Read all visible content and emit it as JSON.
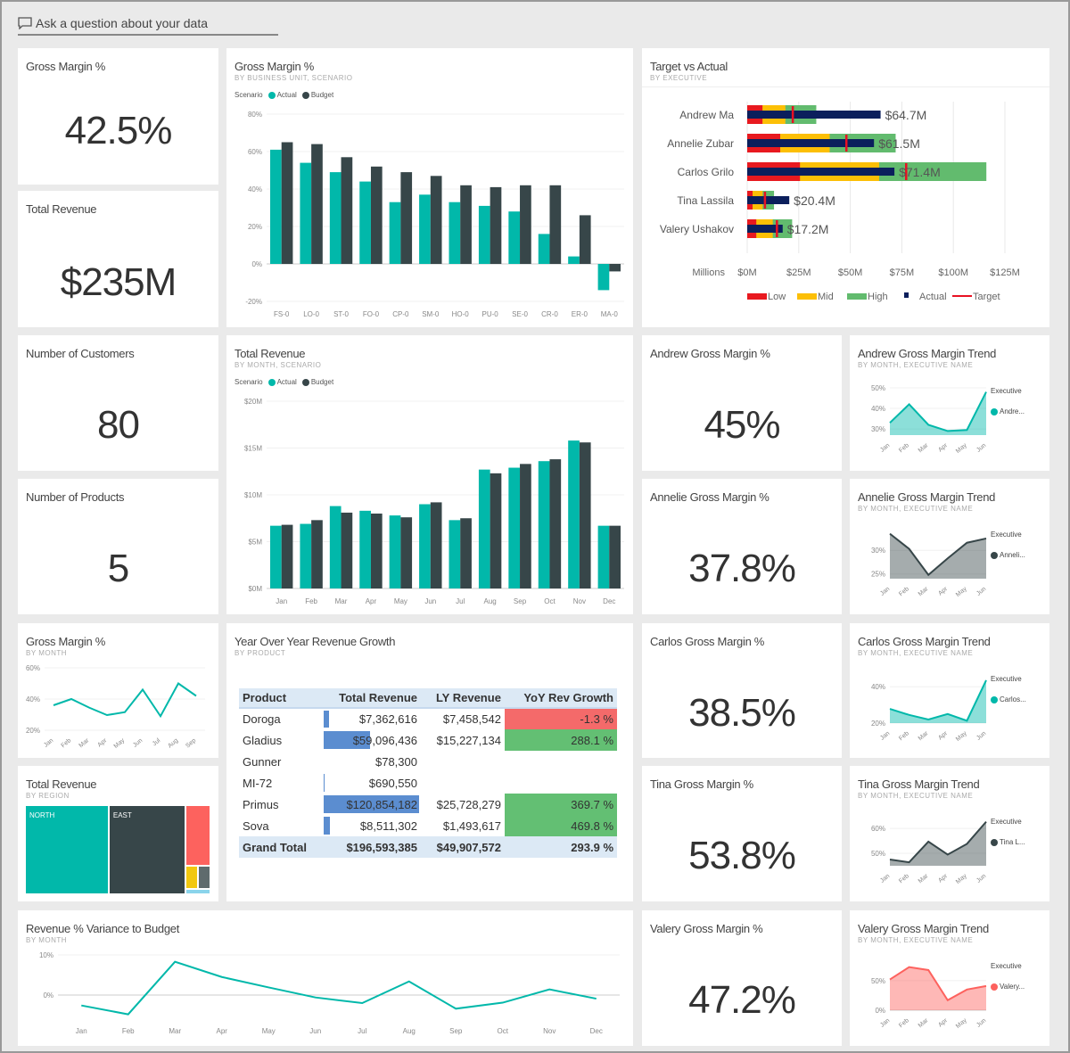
{
  "ask": {
    "placeholder": "Ask a question about your data",
    "icon": "chat-bubble-icon"
  },
  "colors": {
    "actual": "#01b8aa",
    "budget": "#374649",
    "low": "#e8191f",
    "mid": "#fcbf06",
    "high": "#62bb6e",
    "actual_bar": "#0b1f5c",
    "target": "#e81123",
    "neg": "#f46a6a",
    "pos": "#63bf73",
    "databar": "#5b8dd0",
    "red": "#fd625e",
    "yellow": "#f2c80f",
    "gray": "#5f6b6d",
    "lightblue": "#8ad4eb"
  },
  "kpis": {
    "gross_margin": {
      "title": "Gross Margin %",
      "value": "42.5%"
    },
    "total_revenue": {
      "title": "Total Revenue",
      "value": "$235M"
    },
    "customers": {
      "title": "Number of Customers",
      "value": "80"
    },
    "products": {
      "title": "Number of Products",
      "value": "5"
    },
    "andrew": {
      "title": "Andrew Gross Margin %",
      "value": "45%"
    },
    "annelie": {
      "title": "Annelie Gross Margin %",
      "value": "37.8%"
    },
    "carlos": {
      "title": "Carlos Gross Margin %",
      "value": "38.5%"
    },
    "tina": {
      "title": "Tina Gross Margin %",
      "value": "53.8%"
    },
    "valery": {
      "title": "Valery Gross Margin %",
      "value": "47.2%"
    }
  },
  "legend": {
    "scenario": "Scenario",
    "actual": "Actual",
    "budget": "Budget",
    "executive": "Executive"
  },
  "chart_data": [
    {
      "id": "gm_bu",
      "type": "bar",
      "title": "Gross Margin %",
      "subtitle": "BY BUSINESS UNIT, SCENARIO",
      "categories": [
        "FS-0",
        "LO-0",
        "ST-0",
        "FO-0",
        "CP-0",
        "SM-0",
        "HO-0",
        "PU-0",
        "SE-0",
        "CR-0",
        "ER-0",
        "MA-0"
      ],
      "series": [
        {
          "name": "Actual",
          "values": [
            61,
            54,
            49,
            44,
            33,
            37,
            33,
            31,
            28,
            16,
            4,
            -14
          ]
        },
        {
          "name": "Budget",
          "values": [
            65,
            64,
            57,
            52,
            49,
            47,
            42,
            41,
            42,
            42,
            26,
            -4
          ]
        }
      ],
      "ylim": [
        -20,
        80
      ],
      "yticks": [
        -20,
        0,
        20,
        40,
        60,
        80
      ],
      "ytick_labels": [
        "-20%",
        "0%",
        "20%",
        "40%",
        "60%",
        "80%"
      ],
      "grid": true
    },
    {
      "id": "tva",
      "type": "bullet",
      "title": "Target vs Actual",
      "subtitle": "BY EXECUTIVE",
      "categories": [
        "Andrew Ma",
        "Annelie Zubar",
        "Carlos Grilo",
        "Tina Lassila",
        "Valery Ushakov"
      ],
      "low": [
        7.4,
        16,
        25.6,
        2.6,
        4.4
      ],
      "mid": [
        18.5,
        40,
        64,
        7.5,
        12.4
      ],
      "high": [
        33.5,
        72,
        116,
        13,
        21.8
      ],
      "target": [
        22,
        48,
        77,
        8.5,
        14.3
      ],
      "actual": [
        64.7,
        61.5,
        71.4,
        20.4,
        17.2
      ],
      "data_labels": [
        "$64.7M",
        "$61.5M",
        "$71.4M",
        "$20.4M",
        "$17.2M"
      ],
      "xlim": [
        0,
        125
      ],
      "xticks": [
        0,
        25,
        50,
        75,
        100,
        125
      ],
      "xtick_labels": [
        "$0M",
        "$25M",
        "$50M",
        "$75M",
        "$100M",
        "$125M"
      ],
      "xlabel": "Millions",
      "legend": [
        "Low",
        "Mid",
        "High",
        "Actual",
        "Target"
      ],
      "grid": true
    },
    {
      "id": "trev",
      "type": "bar",
      "title": "Total Revenue",
      "subtitle": "BY MONTH, SCENARIO",
      "categories": [
        "Jan",
        "Feb",
        "Mar",
        "Apr",
        "May",
        "Jun",
        "Jul",
        "Aug",
        "Sep",
        "Oct",
        "Nov",
        "Dec"
      ],
      "series": [
        {
          "name": "Actual",
          "values": [
            6.7,
            6.9,
            8.8,
            8.3,
            7.8,
            9,
            7.3,
            12.7,
            12.9,
            13.6,
            15.8,
            6.7
          ]
        },
        {
          "name": "Budget",
          "values": [
            6.8,
            7.3,
            8.1,
            8,
            7.6,
            9.2,
            7.5,
            12.3,
            13.3,
            13.8,
            15.6,
            6.7
          ]
        }
      ],
      "ylim": [
        0,
        20
      ],
      "yticks": [
        0,
        5,
        10,
        15,
        20
      ],
      "ytick_labels": [
        "$0M",
        "$5M",
        "$10M",
        "$15M",
        "$20M"
      ],
      "grid": true
    },
    {
      "id": "gm_month",
      "type": "line",
      "title": "Gross Margin %",
      "subtitle": "BY MONTH",
      "categories": [
        "Jan",
        "Feb",
        "Mar",
        "Apr",
        "May",
        "Jun",
        "Jul",
        "Aug",
        "Sep"
      ],
      "values": [
        36,
        40,
        34.5,
        29.7,
        31.6,
        46,
        29,
        50,
        42
      ],
      "ylim": [
        20,
        60
      ],
      "yticks": [
        20,
        40,
        60
      ],
      "ytick_labels": [
        "20%",
        "40%",
        "60%"
      ],
      "color": "#01b8aa",
      "grid": true
    },
    {
      "id": "andrew_trend",
      "type": "area",
      "title": "Andrew Gross Margin Trend",
      "subtitle": "BY MONTH, EXECUTIVE NAME",
      "categories": [
        "Jan",
        "Feb",
        "Mar",
        "Apr",
        "May",
        "Jun"
      ],
      "values": [
        33,
        42,
        32,
        29,
        29.5,
        48
      ],
      "ylim": [
        27,
        50
      ],
      "yticks": [
        30,
        40,
        50
      ],
      "ytick_labels": [
        "30%",
        "40%",
        "50%"
      ],
      "color": "#01b8aa",
      "legend": "Andre..."
    },
    {
      "id": "annelie_trend",
      "type": "area",
      "title": "Annelie Gross Margin Trend",
      "subtitle": "BY MONTH, EXECUTIVE NAME",
      "categories": [
        "Jan",
        "Feb",
        "Mar",
        "Apr",
        "May",
        "Jun"
      ],
      "values": [
        33.5,
        30.3,
        24.8,
        28.3,
        31.6,
        32.5
      ],
      "ylim": [
        24,
        34
      ],
      "yticks": [
        25,
        30
      ],
      "ytick_labels": [
        "25%",
        "30%"
      ],
      "color": "#374649",
      "legend": "Anneli..."
    },
    {
      "id": "carlos_trend",
      "type": "area",
      "title": "Carlos Gross Margin Trend",
      "subtitle": "BY MONTH, EXECUTIVE NAME",
      "categories": [
        "Jan",
        "Feb",
        "Mar",
        "Apr",
        "May",
        "Jun"
      ],
      "values": [
        27.8,
        24.5,
        22,
        25,
        21.3,
        43.6
      ],
      "ylim": [
        20,
        46
      ],
      "yticks": [
        20,
        40
      ],
      "ytick_labels": [
        "20%",
        "40%"
      ],
      "color": "#01b8aa",
      "legend": "Carlos..."
    },
    {
      "id": "tina_trend",
      "type": "area",
      "title": "Tina Gross Margin Trend",
      "subtitle": "BY MONTH, EXECUTIVE NAME",
      "categories": [
        "Jan",
        "Feb",
        "Mar",
        "Apr",
        "May",
        "Jun"
      ],
      "values": [
        47.5,
        46.4,
        54.7,
        49.5,
        53.8,
        62.7
      ],
      "ylim": [
        45,
        64
      ],
      "yticks": [
        50,
        60
      ],
      "ytick_labels": [
        "50%",
        "60%"
      ],
      "color": "#374649",
      "legend": "Tina L..."
    },
    {
      "id": "valery_trend",
      "type": "area",
      "title": "Valery Gross Margin Trend",
      "subtitle": "BY MONTH, EXECUTIVE NAME",
      "categories": [
        "Jan",
        "Feb",
        "Mar",
        "Apr",
        "May",
        "Jun"
      ],
      "values": [
        52,
        73,
        68,
        17,
        35,
        41
      ],
      "ylim": [
        0,
        80
      ],
      "yticks": [
        0,
        50
      ],
      "ytick_labels": [
        "0%",
        "50%"
      ],
      "color": "#fd625e",
      "legend": "Valery..."
    },
    {
      "id": "revvar",
      "type": "line",
      "title": "Revenue % Variance to Budget",
      "subtitle": "BY MONTH",
      "categories": [
        "Jan",
        "Feb",
        "Mar",
        "Apr",
        "May",
        "Jun",
        "Jul",
        "Aug",
        "Sep",
        "Oct",
        "Nov",
        "Dec"
      ],
      "values": [
        -2.6,
        -4.8,
        8.3,
        4.5,
        1.9,
        -0.6,
        -2,
        3.4,
        -3.4,
        -1.9,
        1.4,
        -0.9
      ],
      "ylim": [
        -6,
        10
      ],
      "yticks": [
        0,
        10
      ],
      "ytick_labels": [
        "0%",
        "10%"
      ],
      "color": "#01b8aa",
      "grid": true
    },
    {
      "id": "treemap",
      "type": "treemap",
      "title": "Total Revenue",
      "subtitle": "BY REGION",
      "labels": [
        "NORTH",
        "EAST"
      ]
    }
  ],
  "yoy": {
    "title": "Year Over Year Revenue Growth",
    "subtitle": "BY PRODUCT",
    "columns": [
      "Product",
      "Total Revenue",
      "LY Revenue",
      "YoY Rev Growth"
    ],
    "rows": [
      [
        "Doroga",
        "$7,362,616",
        "$7,458,542",
        "-1.3 %"
      ],
      [
        "Gladius",
        "$59,096,436",
        "$15,227,134",
        "288.1 %"
      ],
      [
        "Gunner",
        "$78,300",
        "",
        ""
      ],
      [
        "MI-72",
        "$690,550",
        "",
        ""
      ],
      [
        "Primus",
        "$120,854,182",
        "$25,728,279",
        "369.7 %"
      ],
      [
        "Sova",
        "$8,511,302",
        "$1,493,617",
        "469.8 %"
      ]
    ],
    "total": [
      "Grand Total",
      "$196,593,385",
      "$49,907,572",
      "293.9 %"
    ]
  }
}
